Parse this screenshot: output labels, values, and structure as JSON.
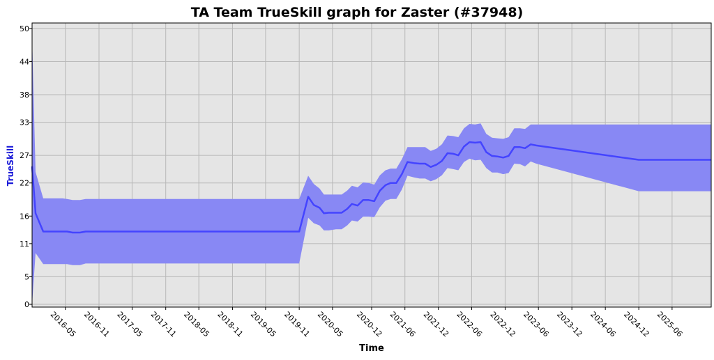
{
  "chart_data": {
    "type": "line",
    "title": "TA Team TrueSkill graph for Zaster (#37948)",
    "xlabel": "Time",
    "ylabel": "TrueSkill",
    "ylim": [
      -0.5,
      51
    ],
    "xlim": [
      "2015-11-01",
      "2026-01-01"
    ],
    "y_ticks": [
      0,
      5,
      11,
      16,
      22,
      27,
      33,
      38,
      44,
      50
    ],
    "x_ticks": [
      "2016-05",
      "2016-11",
      "2017-05",
      "2017-11",
      "2018-05",
      "2018-11",
      "2019-05",
      "2019-11",
      "2020-05",
      "2020-12",
      "2021-06",
      "2021-12",
      "2022-06",
      "2022-12",
      "2023-06",
      "2023-12",
      "2024-06",
      "2024-12",
      "2025-06"
    ],
    "grid": true,
    "legend": "none",
    "colors": {
      "line": "#4444ff",
      "band": "#8888f4",
      "plot_bg": "#e5e5e5",
      "grid": "#b8b8b8",
      "ylabel": "#1a1ad8"
    },
    "series": [
      {
        "x": [
          "2015-11-01",
          "2015-11-20",
          "2016-01-01",
          "2016-02-15",
          "2016-03-15",
          "2016-04-15",
          "2016-05-10",
          "2016-06-10",
          "2016-07-20",
          "2016-08-20",
          "2018-05-01",
          "2019-11-01",
          "2019-12-20",
          "2020-01-20",
          "2020-02-20",
          "2020-03-15",
          "2020-04-10",
          "2020-05-20",
          "2020-06-20",
          "2020-07-20",
          "2020-08-15",
          "2020-09-15",
          "2020-10-15",
          "2020-11-15",
          "2020-12-15",
          "2021-01-15",
          "2021-02-15",
          "2021-03-15",
          "2021-04-15",
          "2021-05-15",
          "2021-06-15",
          "2021-07-20",
          "2021-08-20",
          "2021-09-20",
          "2021-10-20",
          "2021-11-20",
          "2021-12-20",
          "2022-01-20",
          "2022-02-20",
          "2022-03-20",
          "2022-04-20",
          "2022-05-20",
          "2022-06-20",
          "2022-07-20",
          "2022-08-20",
          "2022-09-20",
          "2022-10-20",
          "2022-11-20",
          "2022-12-20",
          "2023-01-20",
          "2023-02-20",
          "2023-03-20",
          "2023-04-20",
          "2023-05-20",
          "2024-12-01",
          "2026-01-01"
        ],
        "y": [
          25.0,
          16.5,
          13.2,
          13.2,
          13.2,
          13.2,
          13.2,
          13.0,
          13.0,
          13.2,
          13.2,
          13.2,
          19.5,
          18.0,
          17.5,
          16.5,
          16.6,
          16.6,
          16.6,
          17.3,
          18.2,
          17.9,
          18.9,
          18.9,
          18.7,
          20.6,
          21.6,
          22.0,
          22.0,
          23.6,
          25.8,
          25.6,
          25.5,
          25.5,
          24.9,
          25.3,
          26.0,
          27.4,
          27.3,
          27.0,
          28.6,
          29.4,
          29.3,
          29.4,
          27.6,
          26.9,
          26.8,
          26.6,
          26.9,
          28.5,
          28.5,
          28.3,
          29.0,
          28.8,
          26.2,
          26.2
        ],
        "upper": [
          48.5,
          24.0,
          19.2,
          19.2,
          19.2,
          19.2,
          19.1,
          18.9,
          18.9,
          19.1,
          19.1,
          19.1,
          23.3,
          21.8,
          21.0,
          19.9,
          19.9,
          19.9,
          19.9,
          20.6,
          21.5,
          21.2,
          22.1,
          22.0,
          21.7,
          23.4,
          24.3,
          24.6,
          24.6,
          26.3,
          28.5,
          28.5,
          28.5,
          28.5,
          27.8,
          28.2,
          29.0,
          30.6,
          30.5,
          30.3,
          31.9,
          32.7,
          32.6,
          32.8,
          30.9,
          30.2,
          30.1,
          30.0,
          30.3,
          31.9,
          31.9,
          31.8,
          32.6,
          32.6,
          32.6,
          32.6
        ],
        "lower": [
          0.0,
          9.3,
          7.3,
          7.3,
          7.3,
          7.3,
          7.3,
          7.1,
          7.1,
          7.4,
          7.4,
          7.4,
          15.7,
          14.7,
          14.3,
          13.4,
          13.4,
          13.6,
          13.6,
          14.3,
          15.2,
          15.0,
          15.9,
          15.9,
          15.8,
          17.6,
          18.8,
          19.1,
          19.1,
          20.8,
          23.3,
          23.0,
          22.8,
          22.8,
          22.3,
          22.7,
          23.4,
          24.7,
          24.5,
          24.3,
          25.8,
          26.4,
          26.1,
          26.2,
          24.7,
          23.9,
          23.9,
          23.6,
          23.8,
          25.5,
          25.4,
          25.0,
          25.9,
          25.5,
          20.5,
          20.5
        ]
      }
    ]
  }
}
